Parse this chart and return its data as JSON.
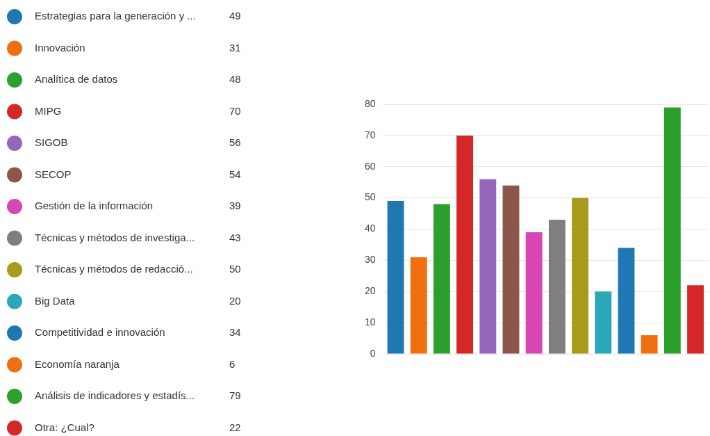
{
  "chart_data": {
    "type": "bar",
    "categories": [
      null
    ],
    "series": [
      {
        "name": "Estrategias para la generación y ...",
        "color": "#1f77b4",
        "values": [
          49
        ]
      },
      {
        "name": "Innovación",
        "color": "#f07010",
        "values": [
          31
        ]
      },
      {
        "name": "Analítica de datos",
        "color": "#2ca02c",
        "values": [
          48
        ]
      },
      {
        "name": "MIPG",
        "color": "#d62728",
        "values": [
          70
        ]
      },
      {
        "name": "SIGOB",
        "color": "#9467bd",
        "values": [
          56
        ]
      },
      {
        "name": "SECOP",
        "color": "#8c564b",
        "values": [
          54
        ]
      },
      {
        "name": "Gestión de la información",
        "color": "#d846b4",
        "values": [
          39
        ]
      },
      {
        "name": "Técnicas y métodos de investiga...",
        "color": "#7f7f7f",
        "values": [
          43
        ]
      },
      {
        "name": "Técnicas y métodos de redacció...",
        "color": "#a89a1a",
        "values": [
          50
        ]
      },
      {
        "name": "Big Data",
        "color": "#2aa8b8",
        "values": [
          20
        ]
      },
      {
        "name": "Competitividad e innovación",
        "color": "#1f77b4",
        "values": [
          34
        ]
      },
      {
        "name": "Economía naranja",
        "color": "#f07010",
        "values": [
          6
        ]
      },
      {
        "name": "Análisis de indicadores y estadís...",
        "color": "#2ca02c",
        "values": [
          79
        ]
      },
      {
        "name": "Otra: ¿Cual?",
        "color": "#d62728",
        "values": [
          22
        ]
      }
    ],
    "ylim": [
      0,
      80
    ],
    "yticks": [
      0,
      10,
      20,
      30,
      40,
      50,
      60,
      70,
      80
    ],
    "annotations": [
      "49",
      "31",
      "48",
      "70",
      "56",
      "54",
      "39",
      "43",
      "50",
      "20",
      "34",
      "6",
      "79",
      "22"
    ],
    "grid": "y",
    "legend": "left",
    "tick_labels": "y"
  }
}
